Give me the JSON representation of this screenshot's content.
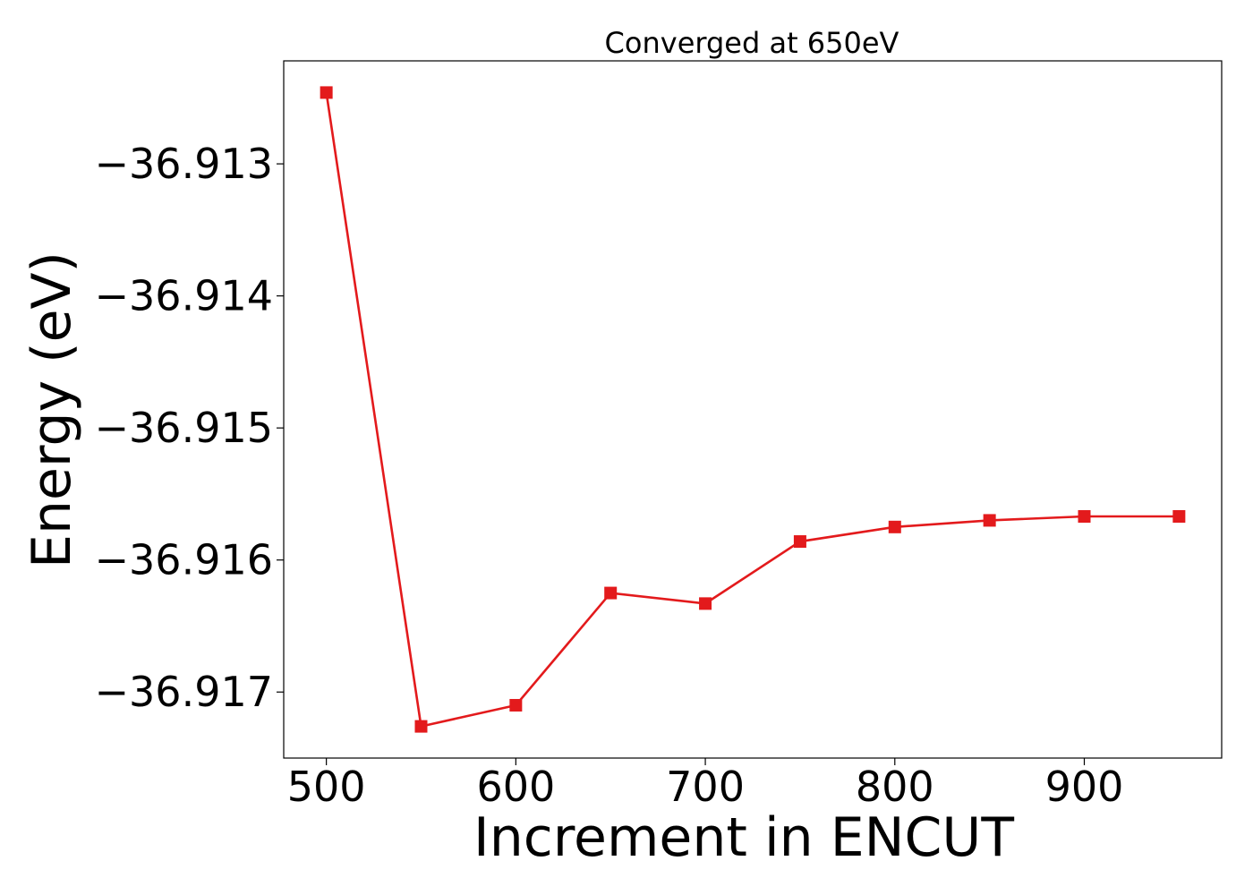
{
  "chart_data": {
    "type": "line",
    "title": "Converged at 650eV",
    "xlabel": "Increment in ENCUT",
    "ylabel": "Energy (eV)",
    "x": [
      500,
      550,
      600,
      650,
      700,
      750,
      800,
      850,
      900,
      950
    ],
    "series": [
      {
        "values": [
          -36.91246,
          -36.91726,
          -36.9171,
          -36.91625,
          -36.91633,
          -36.91586,
          -36.91575,
          -36.9157,
          -36.91567,
          -36.91567
        ],
        "color": "#e31a1c",
        "marker": "square"
      }
    ],
    "xlim": [
      477.5,
      972.5
    ],
    "ylim": [
      -36.9175,
      -36.91222
    ],
    "xticks": [
      500,
      600,
      700,
      800,
      900
    ],
    "xtick_labels": [
      "500",
      "600",
      "700",
      "800",
      "900"
    ],
    "yticks": [
      -36.913,
      -36.914,
      -36.915,
      -36.916,
      -36.917
    ],
    "ytick_labels": [
      "−36.913",
      "−36.914",
      "−36.915",
      "−36.916",
      "−36.917"
    ],
    "grid": false,
    "legend": "none"
  }
}
